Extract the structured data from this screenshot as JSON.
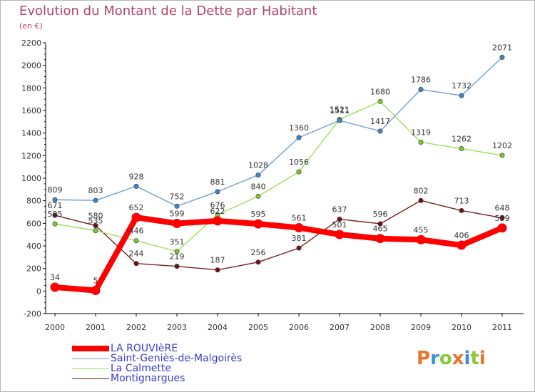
{
  "title": "Evolution du Montant de la Dette par Habitant",
  "unit": "(en €)",
  "logo_text": "Proxiti",
  "logo_colors": [
    "#e8732a",
    "#3a8fd6",
    "#8cc63f",
    "#e8732a",
    "#3a8fd6",
    "#8cc63f",
    "#e8732a"
  ],
  "chart_data": {
    "type": "line",
    "x": [
      "2000",
      "2001",
      "2002",
      "2003",
      "2004",
      "2005",
      "2006",
      "2007",
      "2008",
      "2009",
      "2010",
      "2011"
    ],
    "ylim": [
      -200,
      2200
    ],
    "yticks": [
      -200,
      0,
      200,
      400,
      600,
      800,
      1000,
      1200,
      1400,
      1600,
      1800,
      2000,
      2200
    ],
    "grid": false,
    "legend_position": "bottom-left",
    "series": [
      {
        "name": "Montignargues",
        "color": "#7a2020",
        "marker": "#6e1414",
        "values": [
          671,
          580,
          244,
          219,
          187,
          256,
          381,
          637,
          596,
          802,
          713,
          648
        ]
      },
      {
        "name": "La Calmette",
        "color": "#9be05a",
        "marker": "#7cc63a",
        "values": [
          595,
          535,
          446,
          351,
          676,
          840,
          1056,
          1521,
          1680,
          1319,
          1262,
          1202
        ]
      },
      {
        "name": "Saint-Geniès-de-Malgoirès",
        "color": "#6f9fd0",
        "marker": "#3e86c8",
        "values": [
          809,
          803,
          928,
          752,
          881,
          1028,
          1360,
          1511,
          1417,
          1786,
          1732,
          2071
        ]
      },
      {
        "name": "LA ROUVIèRE",
        "color": "#ff0000",
        "marker": "#ff0000",
        "values": [
          34,
          5,
          652,
          599,
          622,
          595,
          561,
          501,
          465,
          455,
          406,
          559
        ]
      }
    ]
  }
}
